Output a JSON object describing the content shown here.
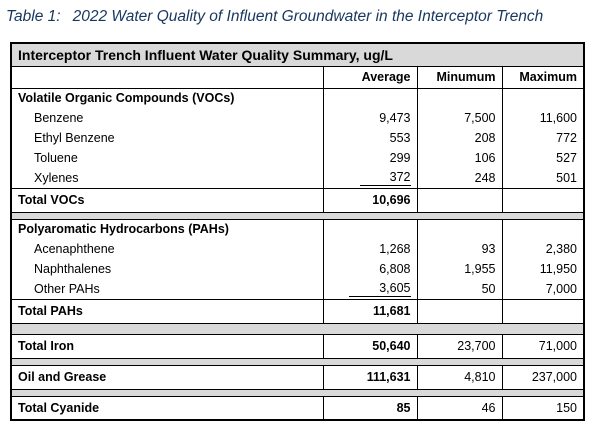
{
  "caption": {
    "label": "Table 1:",
    "text": "2022 Water Quality of Influent Groundwater in the Interceptor Trench"
  },
  "table": {
    "title": "Interceptor Trench Influent Water Quality Summary, ug/L",
    "columns": [
      "Average",
      "Minumum",
      "Maximum"
    ],
    "voc": {
      "header": "Volatile Organic Compounds (VOCs)",
      "rows": [
        {
          "name": "Benzene",
          "avg": "9,473",
          "min": "7,500",
          "max": "11,600"
        },
        {
          "name": "Ethyl Benzene",
          "avg": "553",
          "min": "208",
          "max": "772"
        },
        {
          "name": "Toluene",
          "avg": "299",
          "min": "106",
          "max": "527"
        },
        {
          "name": "Xylenes",
          "avg": "372",
          "min": "248",
          "max": "501"
        }
      ],
      "total_label": "Total VOCs",
      "total_avg": "10,696"
    },
    "pah": {
      "header": "Polyaromatic Hydrocarbons (PAHs)",
      "rows": [
        {
          "name": "Acenaphthene",
          "avg": "1,268",
          "min": "93",
          "max": "2,380"
        },
        {
          "name": "Naphthalenes",
          "avg": "6,808",
          "min": "1,955",
          "max": "11,950"
        },
        {
          "name": "Other PAHs",
          "avg": "3,605",
          "min": "50",
          "max": "7,000"
        }
      ],
      "total_label": "Total PAHs",
      "total_avg": "11,681"
    },
    "iron": {
      "label": "Total Iron",
      "avg": "50,640",
      "min": "23,700",
      "max": "71,000"
    },
    "oil": {
      "label": "Oil and Grease",
      "avg": "111,631",
      "min": "4,810",
      "max": "237,000"
    },
    "cyanide": {
      "label": "Total Cyanide",
      "avg": "85",
      "min": "46",
      "max": "150"
    }
  }
}
